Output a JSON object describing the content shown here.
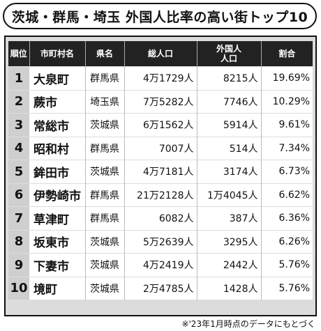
{
  "title": "茨城・群馬・埼玉 外国人比率の高い街トップ10",
  "table": {
    "headers": [
      "順位",
      "市町村名",
      "県名",
      "総人口",
      "外国人\n人口",
      "割合"
    ],
    "rows": [
      {
        "rank": "1",
        "city": "大泉町",
        "pref": "群馬県",
        "total": "4万1729人",
        "foreign": "8215人",
        "ratio": "19.69%"
      },
      {
        "rank": "2",
        "city": "蕨市",
        "pref": "埼玉県",
        "total": "7万5282人",
        "foreign": "7746人",
        "ratio": "10.29%"
      },
      {
        "rank": "3",
        "city": "常総市",
        "pref": "茨城県",
        "total": "6万1562人",
        "foreign": "5914人",
        "ratio": "9.61%"
      },
      {
        "rank": "4",
        "city": "昭和村",
        "pref": "群馬県",
        "total": "7007人",
        "foreign": "514人",
        "ratio": "7.34%"
      },
      {
        "rank": "5",
        "city": "鉾田市",
        "pref": "茨城県",
        "total": "4万7181人",
        "foreign": "3174人",
        "ratio": "6.73%"
      },
      {
        "rank": "6",
        "city": "伊勢崎市",
        "pref": "群馬県",
        "total": "21万2128人",
        "foreign": "1万4045人",
        "ratio": "6.62%"
      },
      {
        "rank": "7",
        "city": "草津町",
        "pref": "群馬県",
        "total": "6082人",
        "foreign": "387人",
        "ratio": "6.36%"
      },
      {
        "rank": "8",
        "city": "坂東市",
        "pref": "茨城県",
        "total": "5万2639人",
        "foreign": "3295人",
        "ratio": "6.26%"
      },
      {
        "rank": "9",
        "city": "下妻市",
        "pref": "茨城県",
        "total": "4万2419人",
        "foreign": "2442人",
        "ratio": "5.76%"
      },
      {
        "rank": "10",
        "city": "境町",
        "pref": "茨城県",
        "total": "2万4785人",
        "foreign": "1428人",
        "ratio": "5.76%"
      }
    ]
  },
  "footnote": "※'23年1月時点のデータにもとづく"
}
